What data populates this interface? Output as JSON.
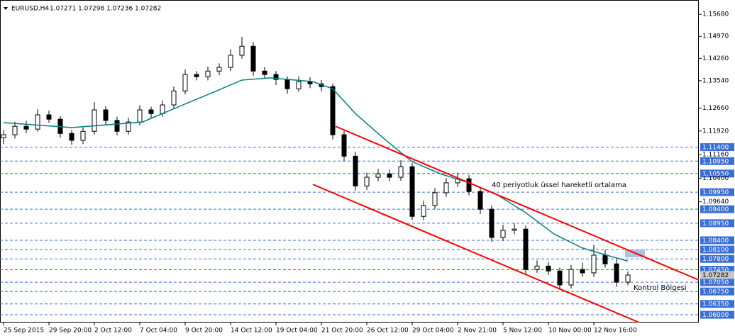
{
  "chart_data": {
    "type": "candlestick",
    "title": "EURUSD,H4",
    "header_values": [
      1.07271,
      1.07298,
      1.07236,
      1.07282
    ],
    "x": [
      0,
      4,
      8,
      12,
      16,
      20,
      24,
      28,
      32,
      36,
      40,
      44,
      48,
      52,
      56,
      60,
      64,
      68,
      72,
      76,
      80,
      84,
      88,
      92,
      96,
      100,
      104,
      108,
      112,
      116,
      120,
      124,
      128,
      132,
      136,
      140,
      144,
      148,
      152,
      156,
      160,
      164,
      168,
      172,
      176,
      180,
      184,
      188,
      192,
      196,
      200,
      204,
      208,
      212,
      216,
      220
    ],
    "ohlc": [
      [
        1.117,
        1.1195,
        1.115,
        1.118
      ],
      [
        1.118,
        1.1222,
        1.1168,
        1.1207
      ],
      [
        1.1207,
        1.1225,
        1.1185,
        1.1198
      ],
      [
        1.1198,
        1.1262,
        1.119,
        1.1244
      ],
      [
        1.1244,
        1.1258,
        1.1218,
        1.123
      ],
      [
        1.123,
        1.124,
        1.117,
        1.1184
      ],
      [
        1.1184,
        1.1195,
        1.1148,
        1.1162
      ],
      [
        1.1162,
        1.1203,
        1.115,
        1.1191
      ],
      [
        1.1191,
        1.1285,
        1.118,
        1.126
      ],
      [
        1.126,
        1.1272,
        1.1212,
        1.1226
      ],
      [
        1.1226,
        1.1238,
        1.1178,
        1.1191
      ],
      [
        1.1191,
        1.1235,
        1.118,
        1.1221
      ],
      [
        1.1221,
        1.1275,
        1.121,
        1.126
      ],
      [
        1.126,
        1.127,
        1.1235,
        1.1248
      ],
      [
        1.1248,
        1.129,
        1.1238,
        1.1276
      ],
      [
        1.1276,
        1.1335,
        1.1265,
        1.1321
      ],
      [
        1.1321,
        1.139,
        1.131,
        1.1374
      ],
      [
        1.1374,
        1.1385,
        1.1355,
        1.1367
      ],
      [
        1.1367,
        1.14,
        1.1355,
        1.1385
      ],
      [
        1.1385,
        1.141,
        1.1372,
        1.1397
      ],
      [
        1.1397,
        1.1455,
        1.1385,
        1.1436
      ],
      [
        1.1436,
        1.1495,
        1.1425,
        1.1465
      ],
      [
        1.1465,
        1.1478,
        1.137,
        1.1385
      ],
      [
        1.1385,
        1.1398,
        1.136,
        1.1374
      ],
      [
        1.1374,
        1.1385,
        1.134,
        1.1358
      ],
      [
        1.1358,
        1.1368,
        1.1312,
        1.1328
      ],
      [
        1.1328,
        1.1368,
        1.1318,
        1.1351
      ],
      [
        1.1351,
        1.1365,
        1.133,
        1.1344
      ],
      [
        1.1344,
        1.1356,
        1.132,
        1.1335
      ],
      [
        1.1335,
        1.1345,
        1.1165,
        1.118
      ],
      [
        1.118,
        1.1192,
        1.1095,
        1.1111
      ],
      [
        1.1111,
        1.1125,
        1.1,
        1.1015
      ],
      [
        1.1015,
        1.1058,
        1.1002,
        1.1043
      ],
      [
        1.1043,
        1.107,
        1.103,
        1.1054
      ],
      [
        1.1054,
        1.1068,
        1.103,
        1.1043
      ],
      [
        1.1043,
        1.1098,
        1.1032,
        1.1077
      ],
      [
        1.1077,
        1.1088,
        1.0905,
        1.0917
      ],
      [
        1.0917,
        1.0968,
        1.0905,
        1.0952
      ],
      [
        1.0952,
        1.1008,
        1.094,
        1.0993
      ],
      [
        1.0993,
        1.104,
        1.098,
        1.1025
      ],
      [
        1.1025,
        1.1058,
        1.1012,
        1.1038
      ],
      [
        1.1038,
        1.105,
        1.0985,
        1.0997
      ],
      [
        1.0997,
        1.1008,
        1.0925,
        1.094
      ],
      [
        1.094,
        1.0952,
        1.0835,
        1.0849
      ],
      [
        1.0849,
        1.089,
        1.0838,
        1.0872
      ],
      [
        1.0872,
        1.0895,
        1.086,
        1.0876
      ],
      [
        1.0876,
        1.0888,
        1.0732,
        1.0746
      ],
      [
        1.0746,
        1.0775,
        1.0735,
        1.0757
      ],
      [
        1.0757,
        1.077,
        1.0728,
        1.0741
      ],
      [
        1.0741,
        1.0752,
        1.068,
        1.0696
      ],
      [
        1.0696,
        1.076,
        1.0685,
        1.0746
      ],
      [
        1.0746,
        1.0768,
        1.0722,
        1.0735
      ],
      [
        1.0735,
        1.0825,
        1.0722,
        1.0792
      ],
      [
        1.0792,
        1.081,
        1.0752,
        1.0764
      ],
      [
        1.0764,
        1.0778,
        1.069,
        1.0705
      ],
      [
        1.0705,
        1.074,
        1.0695,
        1.0728
      ]
    ],
    "up_color": "#ffffff",
    "down_color": "#000000",
    "ema": {
      "x": [
        0,
        24,
        49,
        59,
        74,
        84,
        94,
        109,
        116,
        124,
        134,
        144,
        154,
        164,
        174,
        184,
        194,
        204,
        211,
        220
      ],
      "values": [
        1.1219,
        1.1203,
        1.1221,
        1.126,
        1.1317,
        1.1356,
        1.1363,
        1.1351,
        1.1328,
        1.1248,
        1.1168,
        1.1093,
        1.1054,
        1.1025,
        1.0986,
        1.0929,
        1.086,
        1.0815,
        1.0796,
        1.0773
      ],
      "color": "#008080"
    },
    "channel": [
      {
        "x": [
          117,
          245
        ],
        "values": [
          1.1207,
          1.0712
        ],
        "color": "#ff0000"
      },
      {
        "x": [
          109,
          224
        ],
        "values": [
          1.102,
          1.0575
        ],
        "color": "#ff0000"
      }
    ],
    "zone": {
      "x": [
        219,
        226
      ],
      "values": [
        1.081,
        1.0785
      ],
      "color": "#aec3e6"
    },
    "annotations": [
      {
        "text": "40 periyotluk üssel hareketli ortalama",
        "x": 172,
        "y": 1.1018
      },
      {
        "text": "Kontrol Bölgesi",
        "x": 222,
        "y": 1.0687
      }
    ],
    "levels": [
      {
        "value": 1.114,
        "label": "1.11400"
      },
      {
        "value": 1.1095,
        "label": "1.10950"
      },
      {
        "value": 1.1055,
        "label": "1.10550"
      },
      {
        "value": 1.0995,
        "label": "1.09950"
      },
      {
        "value": 1.094,
        "label": "1.09400"
      },
      {
        "value": 1.0895,
        "label": "1.08950"
      },
      {
        "value": 1.084,
        "label": "1.08400"
      },
      {
        "value": 1.081,
        "label": "1.08100"
      },
      {
        "value": 1.078,
        "label": "1.07800"
      },
      {
        "value": 1.0745,
        "label": "1.07450"
      },
      {
        "value": 1.0705,
        "label": "1.07050"
      },
      {
        "value": 1.0675,
        "label": "1.06750"
      },
      {
        "value": 1.0635,
        "label": "1.06350"
      },
      {
        "value": 1.06,
        "label": "1.06000"
      }
    ],
    "level_color": "#3a6fd8",
    "current_price": 1.07282,
    "xlim": [
      -1.25,
      245
    ],
    "ylim": [
      1.0575,
      1.1614
    ],
    "xticks": [
      {
        "value": 0,
        "label": "25 Sep 2015"
      },
      {
        "value": 16,
        "label": "29 Sep 20:00"
      },
      {
        "value": 32,
        "label": "2 Oct 12:00"
      },
      {
        "value": 48,
        "label": "7 Oct 04:00"
      },
      {
        "value": 64,
        "label": "9 Oct 20:00"
      },
      {
        "value": 80,
        "label": "14 Oct 12:00"
      },
      {
        "value": 96,
        "label": "19 Oct 04:00"
      },
      {
        "value": 112,
        "label": "21 Oct 20:00"
      },
      {
        "value": 128,
        "label": "26 Oct 12:00"
      },
      {
        "value": 144,
        "label": "29 Oct 04:00"
      },
      {
        "value": 160,
        "label": "2 Nov 21:00"
      },
      {
        "value": 176,
        "label": "5 Nov 12:00"
      },
      {
        "value": 192,
        "label": "10 Nov 00:00"
      },
      {
        "value": 208,
        "label": "12 Nov 16:00"
      }
    ],
    "yticks": [
      {
        "value": 1.1568,
        "label": "1.15680"
      },
      {
        "value": 1.1497,
        "label": "1.14970"
      },
      {
        "value": 1.1426,
        "label": "1.14260"
      },
      {
        "value": 1.1354,
        "label": "1.13540"
      },
      {
        "value": 1.1266,
        "label": "1.12660"
      },
      {
        "value": 1.1192,
        "label": "1.11920"
      },
      {
        "value": 1.1116,
        "label": "1.11160"
      },
      {
        "value": 1.104,
        "label": "1.10400"
      },
      {
        "value": 1.0964,
        "label": "1.09640"
      }
    ]
  }
}
